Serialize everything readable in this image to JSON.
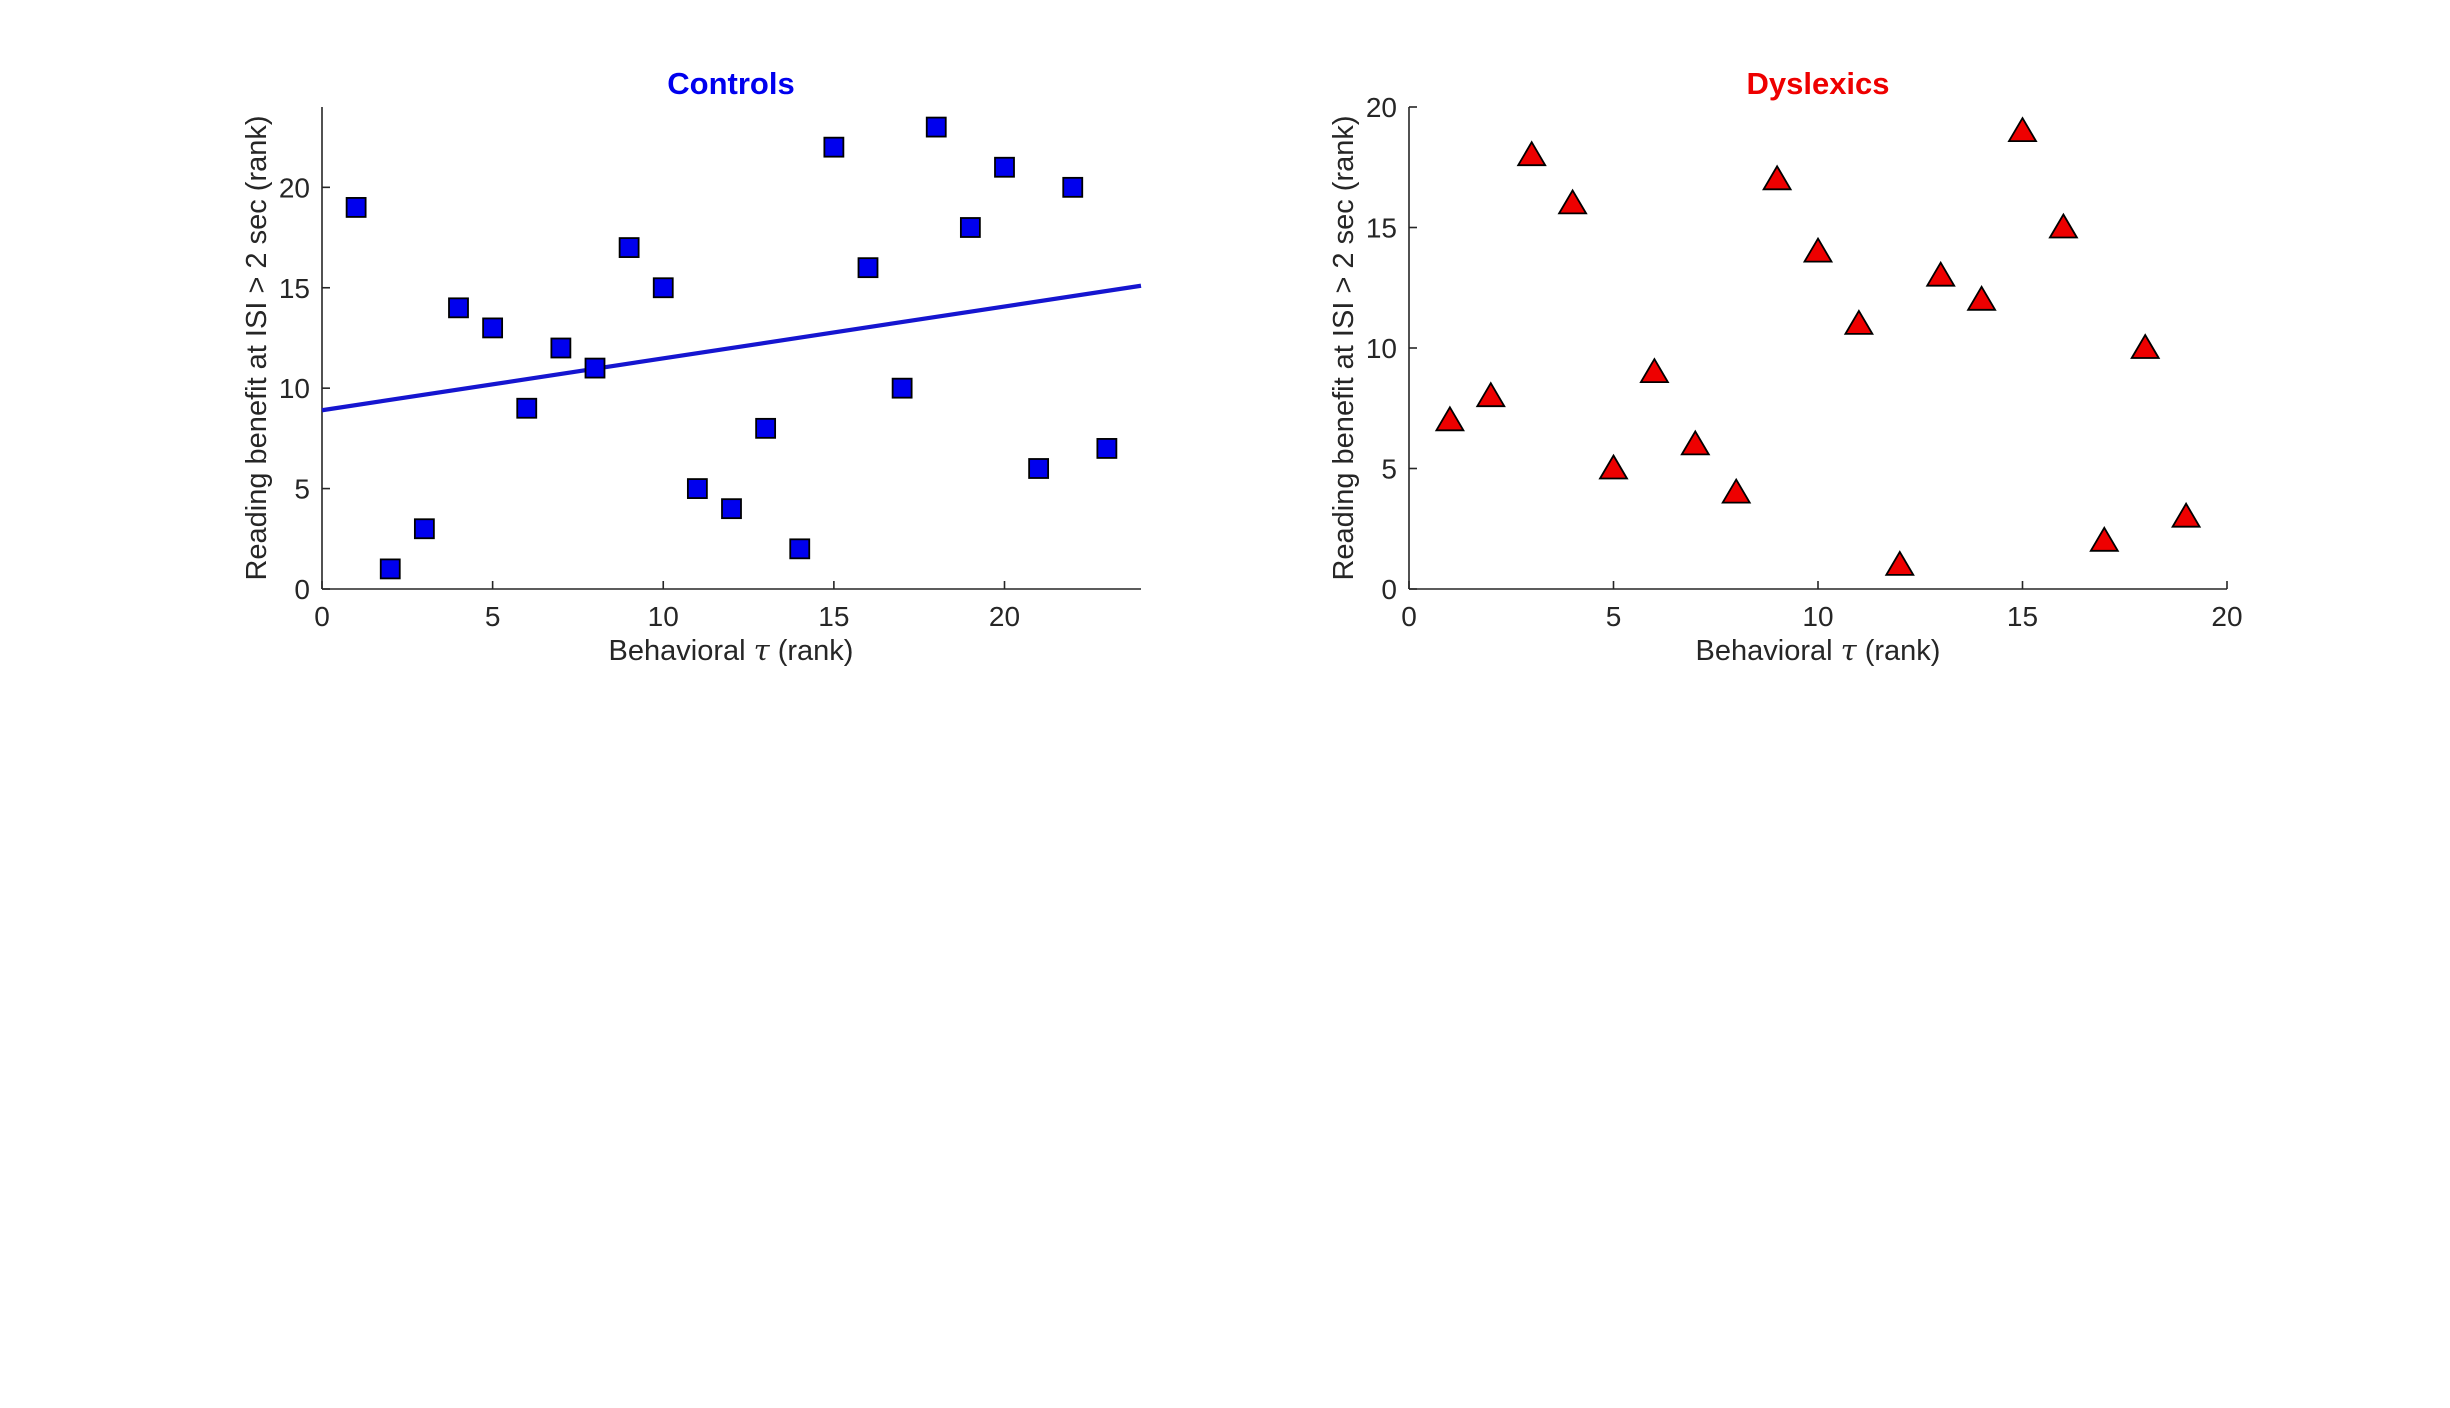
{
  "chart_data": [
    {
      "type": "scatter",
      "title": "Controls",
      "title_color": "#0000ee",
      "xlabel_prefix": "Behavioral ",
      "xlabel_symbol": "τ",
      "xlabel_suffix": " (rank)",
      "ylabel": "Reading benefit at ISI > 2 sec (rank)",
      "xlim": [
        0,
        24
      ],
      "ylim": [
        0,
        24
      ],
      "xticks": [
        0,
        5,
        10,
        15,
        20
      ],
      "yticks": [
        0,
        5,
        10,
        15,
        20
      ],
      "xtick_labels": [
        "0",
        "5",
        "10",
        "15",
        "20"
      ],
      "ytick_labels": [
        "0",
        "5",
        "10",
        "15",
        "20"
      ],
      "marker": "square",
      "marker_color": "#0000ee",
      "series": [
        {
          "x": [
            1,
            2,
            3,
            4,
            5,
            6,
            7,
            8,
            9,
            10,
            11,
            12,
            13,
            14,
            15,
            16,
            17,
            18,
            19,
            20,
            21,
            22,
            23
          ],
          "y": [
            19,
            1,
            3,
            14,
            13,
            9,
            12,
            11,
            17,
            15,
            5,
            4,
            8,
            2,
            22,
            16,
            10,
            23,
            18,
            21,
            6,
            20,
            7
          ]
        }
      ],
      "fit_line": {
        "x": [
          0,
          24
        ],
        "y": [
          8.9,
          15.1
        ],
        "color": "#1515d0"
      }
    },
    {
      "type": "scatter",
      "title": "Dyslexics",
      "title_color": "#ee0000",
      "xlabel_prefix": "Behavioral ",
      "xlabel_symbol": "τ",
      "xlabel_suffix": " (rank)",
      "ylabel": "Reading benefit at ISI > 2 sec (rank)",
      "xlim": [
        0,
        20
      ],
      "ylim": [
        0,
        20
      ],
      "xticks": [
        0,
        5,
        10,
        15,
        20
      ],
      "yticks": [
        0,
        5,
        10,
        15,
        20
      ],
      "xtick_labels": [
        "0",
        "5",
        "10",
        "15",
        "20"
      ],
      "ytick_labels": [
        "0",
        "5",
        "10",
        "15",
        "20"
      ],
      "marker": "triangle",
      "marker_color": "#ee0000",
      "series": [
        {
          "x": [
            1,
            2,
            3,
            4,
            5,
            6,
            7,
            8,
            9,
            10,
            11,
            12,
            13,
            14,
            15,
            16,
            17,
            18,
            19
          ],
          "y": [
            7,
            8,
            18,
            16,
            5,
            9,
            6,
            4,
            17,
            14,
            11,
            1,
            13,
            12,
            19,
            15,
            2,
            10,
            3
          ]
        }
      ]
    }
  ]
}
